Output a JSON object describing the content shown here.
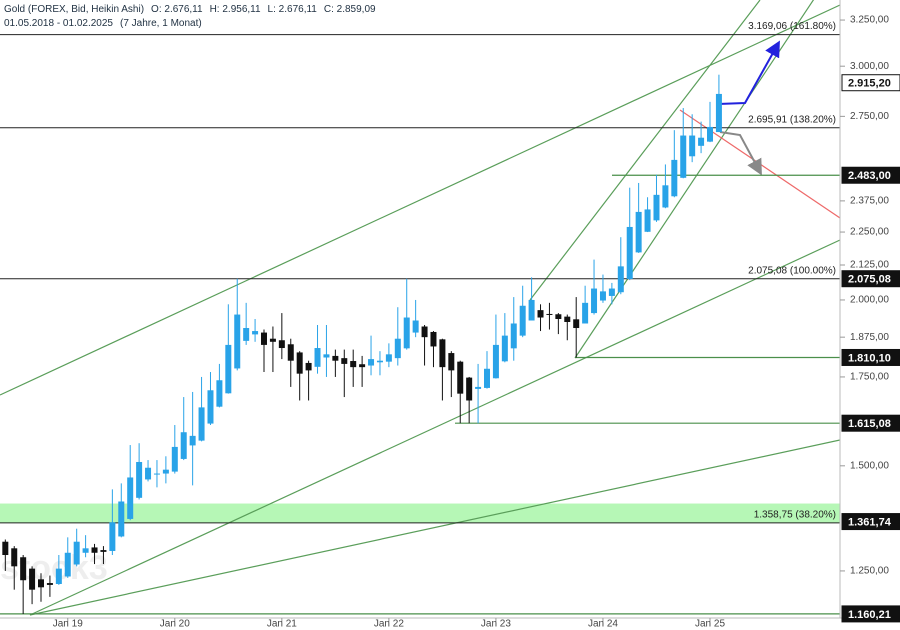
{
  "header": {
    "title": "Gold (FOREX, Bid, Heikin Ashi)",
    "ohlc": [
      "O: 2.676,11",
      "H: 2.956,11",
      "L: 2.676,11",
      "C: 2.859,09"
    ],
    "range": "01.05.2018 - 01.02.2025",
    "span": "(7 Jahre, 1 Monat)"
  },
  "chart_data": {
    "type": "candlestick",
    "log_scale": true,
    "up_color": "#29a3e8",
    "down_color": "#111111",
    "watermark": "stock3",
    "ylim": [
      1152,
      3365
    ],
    "yticks": [
      {
        "value": 3250,
        "label": "3.250,00"
      },
      {
        "value": 3000,
        "label": "3.000,00"
      },
      {
        "value": 2750,
        "label": "2.750,00"
      },
      {
        "value": 2375,
        "label": "2.375,00"
      },
      {
        "value": 2250,
        "label": "2.250,00"
      },
      {
        "value": 2125,
        "label": "2.125,00"
      },
      {
        "value": 2000,
        "label": "2.000,00"
      },
      {
        "value": 1875,
        "label": "1.875,00"
      },
      {
        "value": 1750,
        "label": "1.750,00"
      },
      {
        "value": 1500,
        "label": "1.500,00"
      },
      {
        "value": 1250,
        "label": "1.250,00"
      }
    ],
    "xticks": [
      {
        "value": 8,
        "label": "Jan 19"
      },
      {
        "value": 20,
        "label": "Jan 20"
      },
      {
        "value": 32,
        "label": "Jan 21"
      },
      {
        "value": 44,
        "label": "Jan 22"
      },
      {
        "value": 56,
        "label": "Jan 23"
      },
      {
        "value": 68,
        "label": "Jan 24"
      },
      {
        "value": 80,
        "label": "Jan 25"
      }
    ],
    "candles": [
      [
        1330,
        1335,
        1285,
        1300
      ],
      [
        1315,
        1320,
        1250,
        1285
      ],
      [
        1300,
        1305,
        1210,
        1260
      ],
      [
        1280,
        1285,
        1160,
        1230
      ],
      [
        1255,
        1260,
        1180,
        1210
      ],
      [
        1232,
        1245,
        1185,
        1215
      ],
      [
        1224,
        1240,
        1195,
        1220
      ],
      [
        1222,
        1285,
        1220,
        1255
      ],
      [
        1238,
        1325,
        1235,
        1290
      ],
      [
        1264,
        1345,
        1260,
        1315
      ],
      [
        1290,
        1330,
        1280,
        1300
      ],
      [
        1302,
        1310,
        1265,
        1290
      ],
      [
        1296,
        1305,
        1265,
        1292
      ],
      [
        1294,
        1440,
        1285,
        1360
      ],
      [
        1327,
        1455,
        1325,
        1410
      ],
      [
        1368,
        1555,
        1365,
        1470
      ],
      [
        1419,
        1560,
        1415,
        1510
      ],
      [
        1465,
        1515,
        1460,
        1495
      ],
      [
        1480,
        1515,
        1445,
        1480
      ],
      [
        1480,
        1525,
        1455,
        1490
      ],
      [
        1485,
        1610,
        1480,
        1550
      ],
      [
        1518,
        1690,
        1515,
        1590
      ],
      [
        1554,
        1705,
        1450,
        1580
      ],
      [
        1567,
        1750,
        1565,
        1660
      ],
      [
        1614,
        1765,
        1610,
        1710
      ],
      [
        1662,
        1790,
        1660,
        1740
      ],
      [
        1701,
        1985,
        1700,
        1850
      ],
      [
        1776,
        2075,
        1770,
        1950
      ],
      [
        1863,
        1990,
        1850,
        1905
      ],
      [
        1884,
        1935,
        1860,
        1895
      ],
      [
        1890,
        1900,
        1765,
        1850
      ],
      [
        1870,
        1910,
        1765,
        1860
      ],
      [
        1865,
        1955,
        1805,
        1840
      ],
      [
        1852,
        1870,
        1720,
        1800
      ],
      [
        1826,
        1830,
        1680,
        1760
      ],
      [
        1793,
        1800,
        1680,
        1770
      ],
      [
        1781,
        1915,
        1760,
        1840
      ],
      [
        1810,
        1915,
        1750,
        1820
      ],
      [
        1815,
        1835,
        1750,
        1800
      ],
      [
        1808,
        1835,
        1690,
        1790
      ],
      [
        1799,
        1835,
        1720,
        1780
      ],
      [
        1789,
        1815,
        1720,
        1780
      ],
      [
        1785,
        1880,
        1755,
        1805
      ],
      [
        1795,
        1830,
        1755,
        1800
      ],
      [
        1797,
        1855,
        1780,
        1820
      ],
      [
        1808,
        1975,
        1785,
        1870
      ],
      [
        1839,
        2075,
        1835,
        1940
      ],
      [
        1890,
        2000,
        1875,
        1930
      ],
      [
        1910,
        1915,
        1785,
        1875
      ],
      [
        1892,
        1895,
        1780,
        1845
      ],
      [
        1868,
        1870,
        1680,
        1780
      ],
      [
        1824,
        1830,
        1690,
        1770
      ],
      [
        1797,
        1800,
        1615,
        1700
      ],
      [
        1748,
        1750,
        1615,
        1680
      ],
      [
        1714,
        1790,
        1615,
        1720
      ],
      [
        1717,
        1830,
        1715,
        1775
      ],
      [
        1746,
        1950,
        1745,
        1850
      ],
      [
        1798,
        1955,
        1795,
        1880
      ],
      [
        1839,
        2010,
        1800,
        1920
      ],
      [
        1880,
        2050,
        1875,
        1980
      ],
      [
        1930,
        2080,
        1930,
        2000
      ],
      [
        1965,
        1985,
        1895,
        1940
      ],
      [
        1952,
        1990,
        1900,
        1950
      ],
      [
        1951,
        1955,
        1885,
        1935
      ],
      [
        1943,
        1950,
        1865,
        1925
      ],
      [
        1934,
        2010,
        1810,
        1905
      ],
      [
        1920,
        2050,
        1920,
        1990
      ],
      [
        1955,
        2145,
        1950,
        2040
      ],
      [
        1998,
        2090,
        1990,
        2030
      ],
      [
        2014,
        2060,
        1985,
        2040
      ],
      [
        2027,
        2230,
        2020,
        2120
      ],
      [
        2074,
        2430,
        2070,
        2270
      ],
      [
        2172,
        2450,
        2170,
        2330
      ],
      [
        2251,
        2390,
        2250,
        2340
      ],
      [
        2296,
        2485,
        2290,
        2400
      ],
      [
        2348,
        2530,
        2345,
        2440
      ],
      [
        2394,
        2685,
        2390,
        2550
      ],
      [
        2472,
        2790,
        2470,
        2660
      ],
      [
        2566,
        2760,
        2540,
        2660
      ],
      [
        2613,
        2725,
        2580,
        2650
      ],
      [
        2632,
        2820,
        2630,
        2700
      ],
      [
        2676.11,
        2956.11,
        2676.11,
        2859.09
      ]
    ],
    "levels": [
      {
        "value": 3169.06,
        "label": "3.169,06 (161.80%)"
      },
      {
        "value": 2695.91,
        "label": "2.695,91 (138.20%)"
      },
      {
        "value": 2075.08,
        "label": "2.075,08 (100.00%)"
      },
      {
        "value": 1358.75,
        "label": "1.358,75 (38.20%)"
      }
    ],
    "zone": {
      "from": 1358.75,
      "to": 1405,
      "color": "#b6f7b6"
    },
    "supports": [
      2483,
      1810.1,
      1615.08,
      1160.21
    ],
    "price_tags": [
      {
        "value": 2915.2,
        "label": "2.915,20",
        "current": true
      },
      {
        "value": 2483,
        "label": "2.483,00"
      },
      {
        "value": 2075.08,
        "label": "2.075,08"
      },
      {
        "value": 1810.1,
        "label": "1.810,10"
      },
      {
        "value": 1615.08,
        "label": "1.615,08"
      },
      {
        "value": 1361.74,
        "label": "1.361,74"
      },
      {
        "value": 1160.21,
        "label": "1.160,21"
      }
    ]
  }
}
